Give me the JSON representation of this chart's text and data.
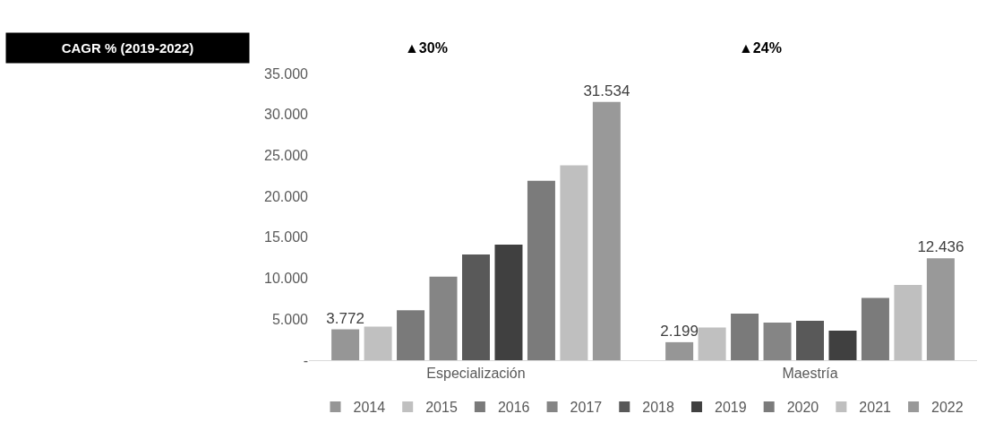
{
  "chart_data": {
    "type": "bar",
    "categories": [
      "Especialización",
      "Maestría"
    ],
    "series": [
      {
        "name": "2014",
        "color": "#969696",
        "values": [
          3772,
          2199
        ],
        "value_labels": [
          "3.772",
          "2.199"
        ]
      },
      {
        "name": "2015",
        "color": "#c0c0c0",
        "values": [
          4100,
          4000
        ]
      },
      {
        "name": "2016",
        "color": "#7a7a7a",
        "values": [
          6100,
          5700
        ]
      },
      {
        "name": "2017",
        "color": "#858585",
        "values": [
          10200,
          4600
        ]
      },
      {
        "name": "2018",
        "color": "#595959",
        "values": [
          12900,
          4800
        ]
      },
      {
        "name": "2019",
        "color": "#404040",
        "values": [
          14100,
          3600
        ]
      },
      {
        "name": "2020",
        "color": "#7b7b7b",
        "values": [
          21900,
          7600
        ]
      },
      {
        "name": "2021",
        "color": "#bfbfbf",
        "values": [
          23800,
          9200
        ]
      },
      {
        "name": "2022",
        "color": "#999999",
        "values": [
          31534,
          12436
        ],
        "value_labels": [
          "31.534",
          "12.436"
        ]
      }
    ],
    "ylim": [
      0,
      35000
    ],
    "yticks": [
      {
        "value": 0,
        "label": "-"
      },
      {
        "value": 5000,
        "label": "5.000"
      },
      {
        "value": 10000,
        "label": "10.000"
      },
      {
        "value": 15000,
        "label": "15.000"
      },
      {
        "value": 20000,
        "label": "20.000"
      },
      {
        "value": 25000,
        "label": "25.000"
      },
      {
        "value": 30000,
        "label": "30.000"
      },
      {
        "value": 35000,
        "label": "35.000"
      }
    ],
    "grid": false,
    "legend": "bottom",
    "annotations": [
      "CAGR % (2019-2022)",
      "▲30%",
      "▲24%"
    ]
  }
}
